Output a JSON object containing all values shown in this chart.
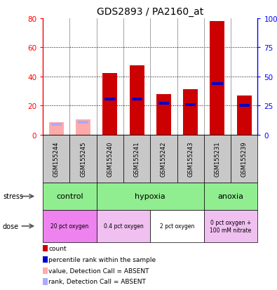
{
  "title": "GDS2893 / PA2160_at",
  "samples": [
    "GSM155244",
    "GSM155245",
    "GSM155240",
    "GSM155241",
    "GSM155242",
    "GSM155243",
    "GSM155231",
    "GSM155239"
  ],
  "count_values": [
    8.5,
    10.5,
    42.5,
    47.5,
    28,
    31,
    78,
    27
  ],
  "rank_values": [
    7,
    8.5,
    24.5,
    24.5,
    21.5,
    20.5,
    35,
    20
  ],
  "absent": [
    true,
    true,
    false,
    false,
    false,
    false,
    false,
    false
  ],
  "ylim_left": [
    0,
    80
  ],
  "ylim_right": [
    0,
    100
  ],
  "yticks_left": [
    0,
    20,
    40,
    60,
    80
  ],
  "yticks_right": [
    0,
    25,
    50,
    75,
    100
  ],
  "ytick_labels_right": [
    "0",
    "25",
    "50",
    "75",
    "100%"
  ],
  "stress_groups": [
    {
      "label": "control",
      "start": 0,
      "end": 2
    },
    {
      "label": "hypoxia",
      "start": 2,
      "end": 6
    },
    {
      "label": "anoxia",
      "start": 6,
      "end": 8
    }
  ],
  "dose_groups": [
    {
      "label": "20 pct oxygen",
      "start": 0,
      "end": 2,
      "color": "#ee82ee"
    },
    {
      "label": "0.4 pct oxygen",
      "start": 2,
      "end": 4,
      "color": "#f0c0f0"
    },
    {
      "label": "2 pct oxygen",
      "start": 4,
      "end": 6,
      "color": "#ffffff"
    },
    {
      "label": "0 pct oxygen +\n100 mM nitrate",
      "start": 6,
      "end": 8,
      "color": "#f0c0f0"
    }
  ],
  "bar_color_present": "#cc0000",
  "bar_color_absent": "#ffaaaa",
  "rank_color_present": "#0000cc",
  "rank_color_absent": "#aaaaff",
  "stress_color": "#90ee90",
  "bar_width": 0.55,
  "rank_bar_width": 0.4,
  "rank_bar_height": 1.8,
  "legend_items": [
    {
      "color": "#cc0000",
      "label": "count"
    },
    {
      "color": "#0000cc",
      "label": "percentile rank within the sample"
    },
    {
      "color": "#ffaaaa",
      "label": "value, Detection Call = ABSENT"
    },
    {
      "color": "#aaaaff",
      "label": "rank, Detection Call = ABSENT"
    }
  ],
  "grid_lines": [
    20,
    40,
    60
  ],
  "sample_label_color": "#333333",
  "label_row_bg": "#c8c8c8"
}
